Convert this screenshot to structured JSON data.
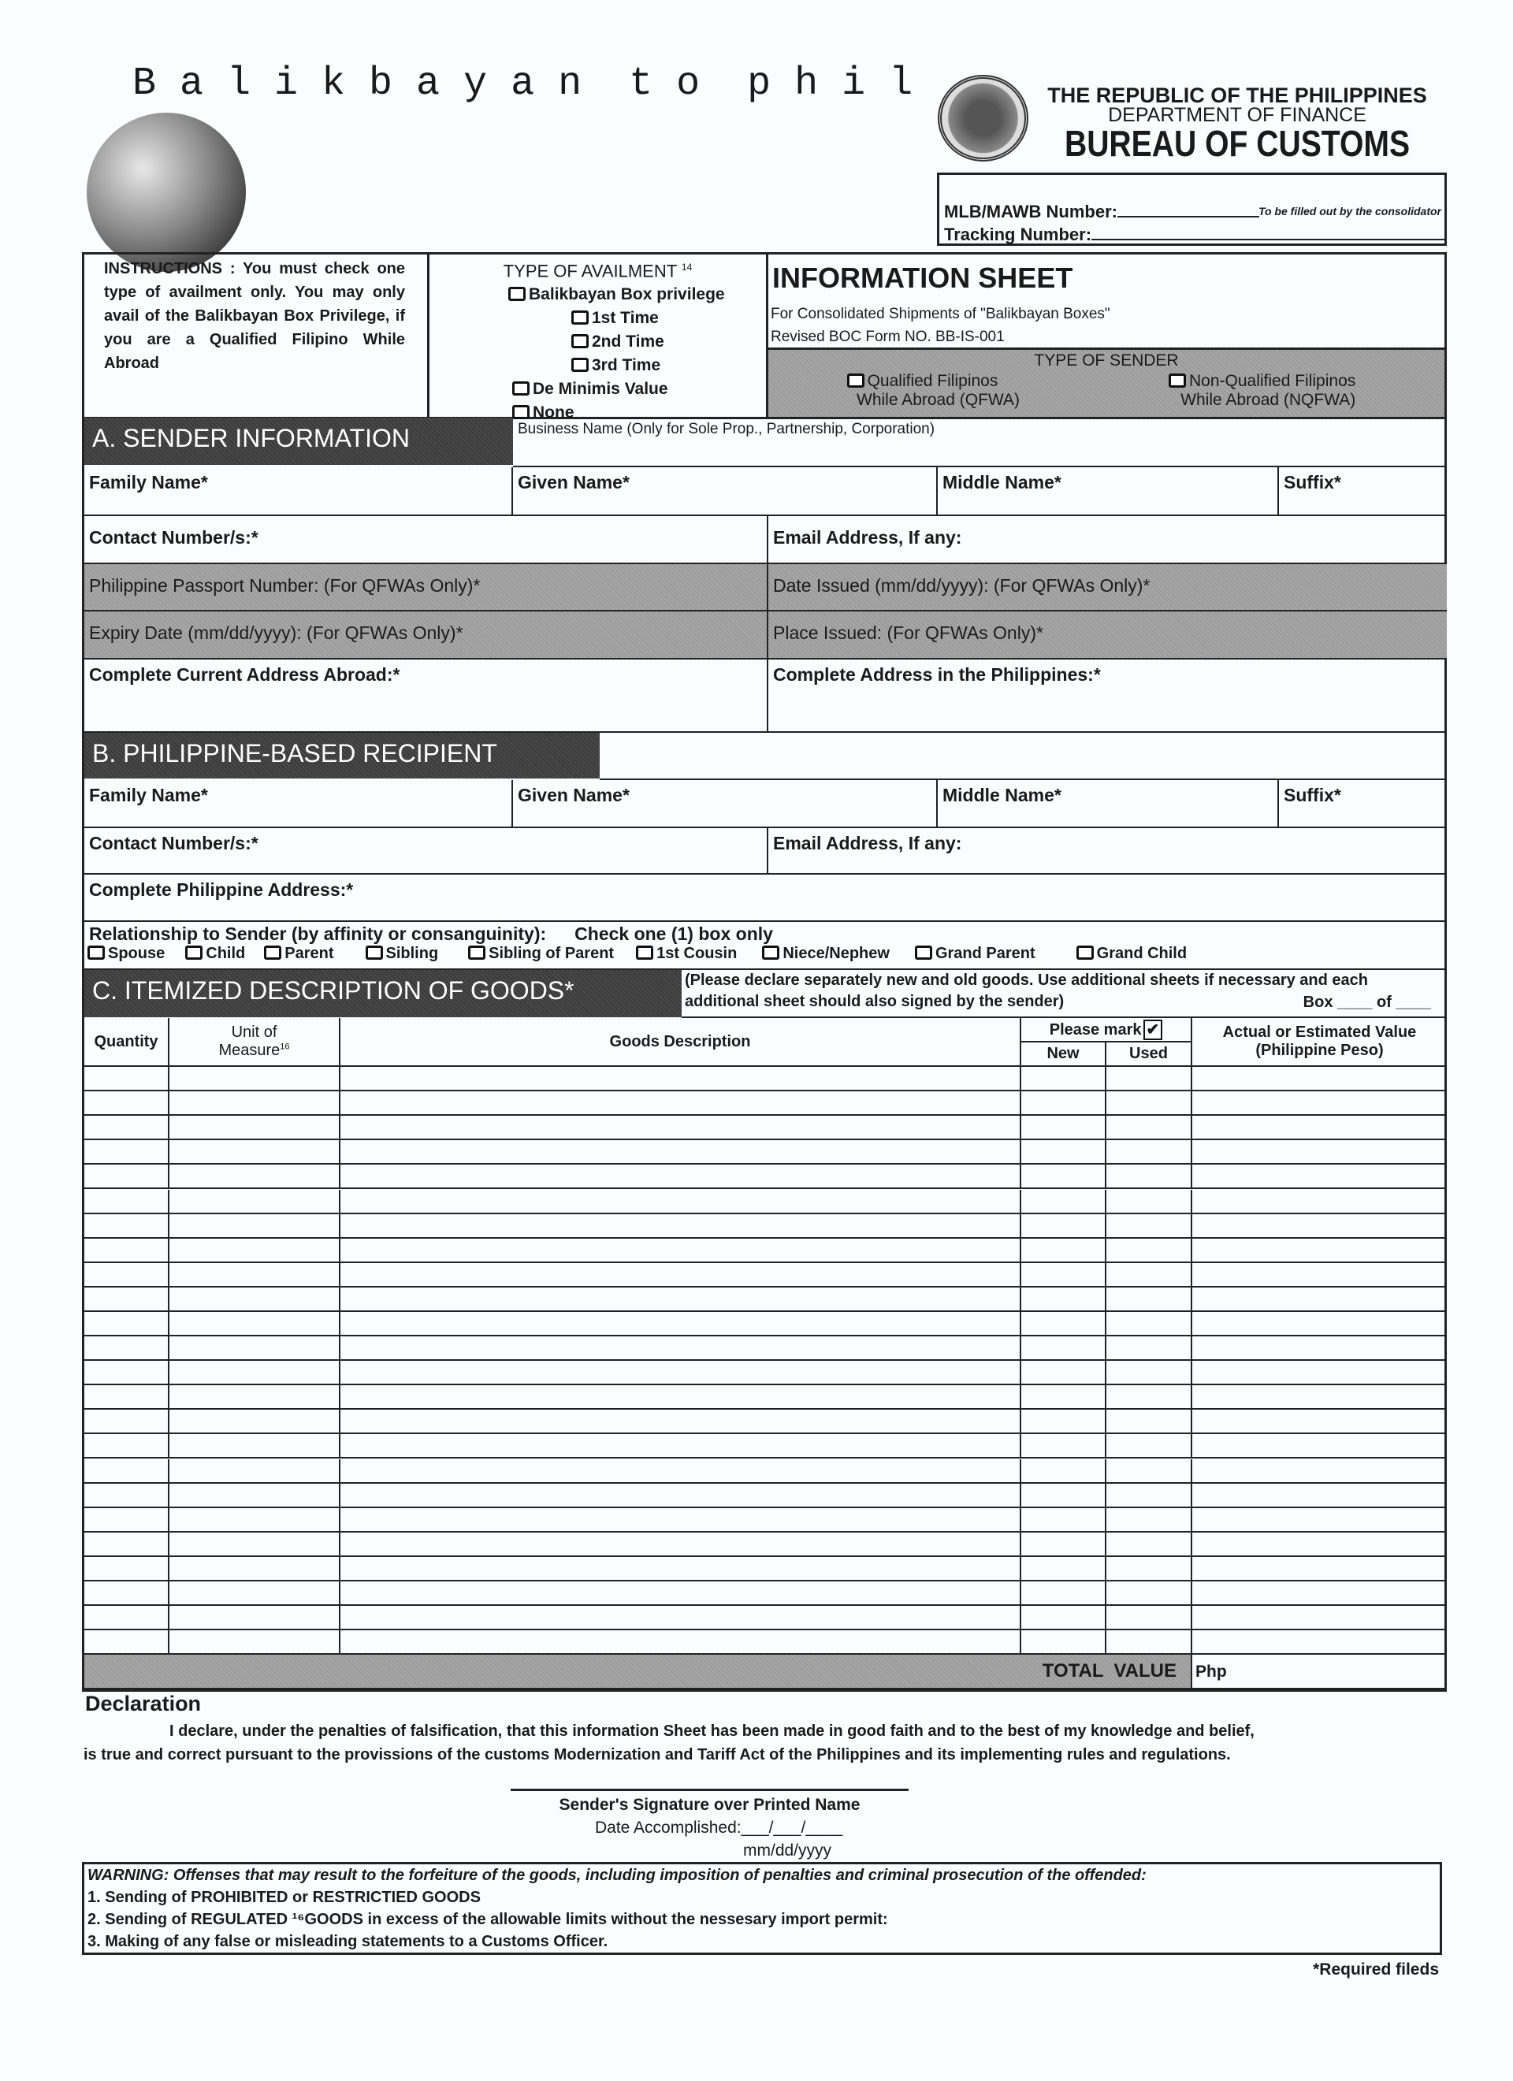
{
  "header": {
    "handwritten_title": "B a l i k b a y a n  t o  p h i l",
    "agency_line1": "THE REPUBLIC OF THE PHILIPPINES",
    "agency_line2": "DEPARTMENT OF FINANCE",
    "agency_line3": "BUREAU OF CUSTOMS",
    "seal_text": "DEPARTMENT OF FINANCE BUREAU OF CUSTOMS",
    "mlb_label": "MLB/MAWB Number:",
    "consolidator_note": "To be filled out by the consolidator",
    "tracking_label": "Tracking Number:"
  },
  "instructions": "INSTRUCTIONS : You must check one type of availment only. You may only avail of the Balikbayan Box Privilege, if you are a Qualified Filipino While Abroad",
  "availment": {
    "title": "TYPE OF AVAILMENT",
    "footnote": "14",
    "options": [
      "Balikbayan Box privilege",
      "1st Time",
      "2nd Time",
      "3rd Time",
      "De Minimis Value",
      "None"
    ]
  },
  "info": {
    "title": "INFORMATION SHEET",
    "subtitle": "For Consolidated Shipments of \"Balikbayan Boxes\"",
    "form_no": "Revised BOC Form NO. BB-IS-001",
    "sender_type_title": "TYPE OF SENDER",
    "sender_type_1a": "Qualified Filipinos",
    "sender_type_1b": "While Abroad (QFWA)",
    "sender_type_2a": "Non-Qualified Filipinos",
    "sender_type_2b": "While Abroad (NQFWA)"
  },
  "sender": {
    "header": "A. SENDER INFORMATION",
    "business_name": "Business Name (Only for Sole Prop., Partnership, Corporation)",
    "family_name": "Family Name*",
    "given_name": "Given Name*",
    "middle_name": "Middle Name*",
    "suffix": "Suffix*",
    "contact": "Contact Number/s:*",
    "email": "Email Address, If any:",
    "passport": "Philippine Passport Number: (For QFWAs Only)*",
    "date_issued": "Date Issued (mm/dd/yyyy): (For QFWAs Only)*",
    "expiry": "Expiry Date (mm/dd/yyyy): (For QFWAs Only)*",
    "place_issued": "Place Issued: (For QFWAs Only)*",
    "address_abroad": "Complete Current Address Abroad:*",
    "address_ph": "Complete Address in the Philippines:*"
  },
  "recipient": {
    "header": "B. PHILIPPINE-BASED RECIPIENT",
    "family_name": "Family Name*",
    "given_name": "Given Name*",
    "middle_name": "Middle Name*",
    "suffix": "Suffix*",
    "contact": "Contact Number/s:*",
    "email": "Email Address, If any:",
    "address": "Complete Philippine Address:*",
    "relationship": "Relationship to Sender (by affinity or consanguinity):",
    "check_one": "Check one (1) box only",
    "relations": [
      "Spouse",
      "Child",
      "Parent",
      "Sibling",
      "Sibling of Parent",
      "1st Cousin",
      "Niece/Nephew",
      "Grand Parent",
      "Grand Child"
    ]
  },
  "goods": {
    "header": "C. ITEMIZED DESCRIPTION OF GOODS*",
    "note1": "(Please declare separately new and old goods. Use additional sheets if necessary and each",
    "note2": "additional sheet should also signed by the sender)",
    "box_label": "Box ____ of ____",
    "col_quantity": "Quantity",
    "col_unit1": "Unit of",
    "col_unit2": "Measure",
    "unit_footnote": "16",
    "col_desc": "Goods Description",
    "col_mark": "Please mark",
    "col_new": "New",
    "col_used": "Used",
    "col_value1": "Actual or Estimated Value",
    "col_value2": "(Philippine Peso)",
    "total_label": "TOTAL  VALUE",
    "currency": "Php"
  },
  "declaration": {
    "title": "Declaration",
    "line1": "I declare, under the penalties of falsification, that this information Sheet has been made in good faith and to the best of my knowledge and belief,",
    "line2": "is true and correct pursuant to the provissions of the customs Modernization and Tariff Act of the Philippines and its implementing rules and regulations.",
    "signature": "Sender's Signature over Printed Name",
    "date": "Date Accomplished:___/___/____",
    "date_format": "mm/dd/yyyy"
  },
  "warning": {
    "title": "WARNING: Offenses that may result to the forfeiture of the goods, including imposition of penalties and criminal prosecution of the offended:",
    "items": [
      "1. Sending of PROHIBITED or RESTRICTIED GOODS",
      "2. Sending of REGULATED ¹⁶GOODS in excess of the allowable limits without the nessesary import permit:",
      "3. Making of any false or misleading statements to a Customs Officer."
    ]
  },
  "required_note": "*Required fileds"
}
